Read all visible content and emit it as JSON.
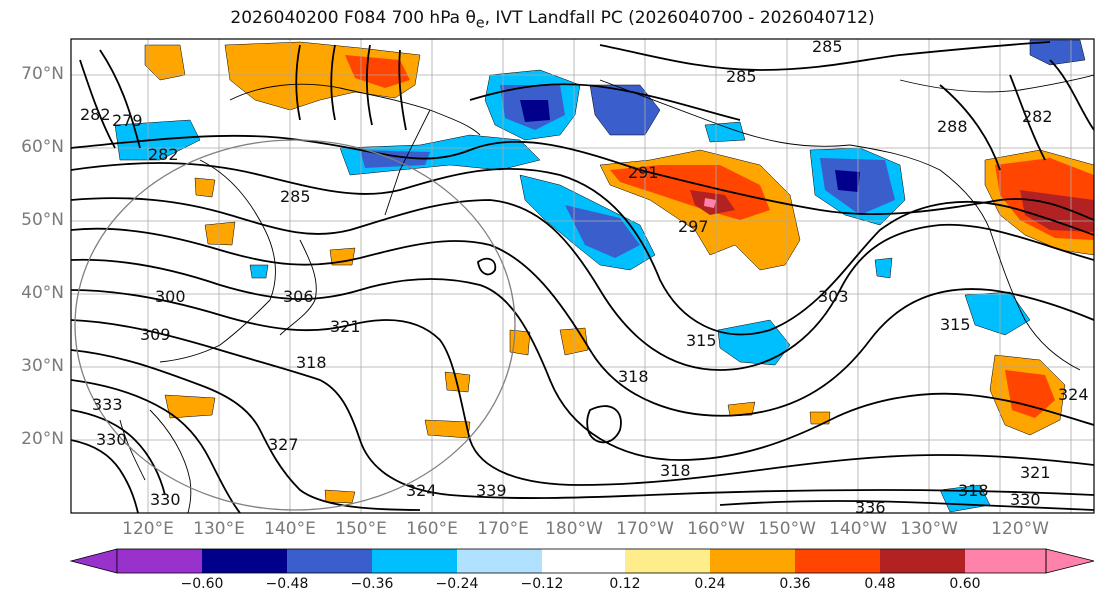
{
  "title": "2026040200 F084 700 hPa θ",
  "title_sub": "e",
  "title_rest": ", IVT Landfall PC (2026040700 - 2026040712)",
  "lat_labels": [
    "70°N",
    "60°N",
    "50°N",
    "40°N",
    "30°N",
    "20°N"
  ],
  "lon_labels": [
    "120°E",
    "130°E",
    "140°E",
    "150°E",
    "160°E",
    "170°E",
    "180°W",
    "170°W",
    "160°W",
    "150°W",
    "140°W",
    "130°W",
    "120°W"
  ],
  "colorbar": {
    "ticks": [
      "−0.60",
      "−0.48",
      "−0.36",
      "−0.24",
      "−0.12",
      "0.12",
      "0.24",
      "0.36",
      "0.48",
      "0.60"
    ],
    "colors": [
      "#9932cc",
      "#00008b",
      "#3a5fcd",
      "#00bfff",
      "#b0e2ff",
      "#ffffff",
      "#ffec8b",
      "#ffa500",
      "#ff4500",
      "#b22222",
      "#ff82ab"
    ]
  },
  "contour_labels": [
    "285",
    "285",
    "282",
    "279",
    "282",
    "285",
    "291",
    "297",
    "288",
    "282",
    "300",
    "306",
    "309",
    "321",
    "318",
    "315",
    "303",
    "318",
    "318",
    "327",
    "330",
    "333",
    "324",
    "339",
    "318",
    "321",
    "315",
    "324",
    "336",
    "330",
    "330"
  ]
}
